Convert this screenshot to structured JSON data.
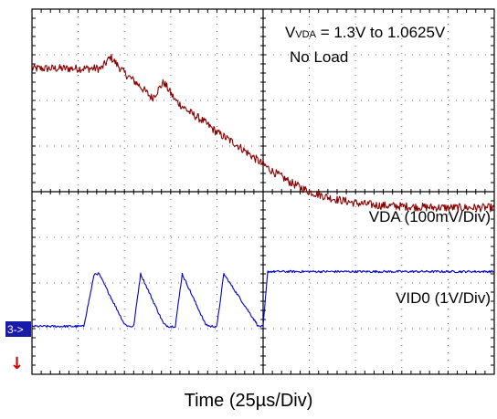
{
  "chart_data": {
    "type": "line",
    "xlabel": "Time  (25µs/Div)",
    "x_divisions": 10,
    "y_divisions": 8,
    "x_per_div": 25,
    "x_unit": "µs",
    "annotations": {
      "vvda_prefix": "V",
      "vvda_sub": "VDA",
      "vvda_rest": " = 1.3V to 1.0625V",
      "no_load": "No Load",
      "vda_scale": "VDA (100mV/Div)",
      "vid0_scale": "VID0 (1V/Div)",
      "ch3_marker": "3->",
      "trigger_marker": "↓"
    },
    "series": [
      {
        "channel": "VDA",
        "color": "#8b0000",
        "scale": "100mV/Div",
        "x_div": [
          0,
          0.5,
          1.0,
          1.5,
          1.7,
          2.0,
          2.3,
          2.6,
          2.85,
          3.1,
          3.4,
          3.7,
          4.0,
          4.4,
          4.8,
          5.2,
          5.6,
          6.0,
          6.5,
          7.0,
          7.5,
          8.0,
          8.5,
          9.0,
          9.5,
          10.0
        ],
        "y_div": [
          6.7,
          6.7,
          6.7,
          6.7,
          6.95,
          6.6,
          6.35,
          6.05,
          6.4,
          6.0,
          5.75,
          5.55,
          5.3,
          5.05,
          4.75,
          4.45,
          4.2,
          4.0,
          3.85,
          3.75,
          3.7,
          3.68,
          3.66,
          3.65,
          3.65,
          3.65
        ]
      },
      {
        "channel": "VID0",
        "color": "#0000cc",
        "scale": "1V/Div",
        "x_div": [
          0,
          1.12,
          1.35,
          1.45,
          2.0,
          2.1,
          2.2,
          2.35,
          2.85,
          2.95,
          3.1,
          3.25,
          3.75,
          3.85,
          4.0,
          4.15,
          4.9,
          5.0,
          5.1,
          10.0
        ],
        "y_div": [
          1.05,
          1.05,
          2.2,
          2.2,
          1.1,
          1.05,
          1.05,
          2.2,
          1.1,
          1.05,
          1.05,
          2.2,
          1.1,
          1.05,
          1.05,
          2.2,
          1.05,
          1.05,
          2.25,
          2.25
        ]
      }
    ]
  }
}
